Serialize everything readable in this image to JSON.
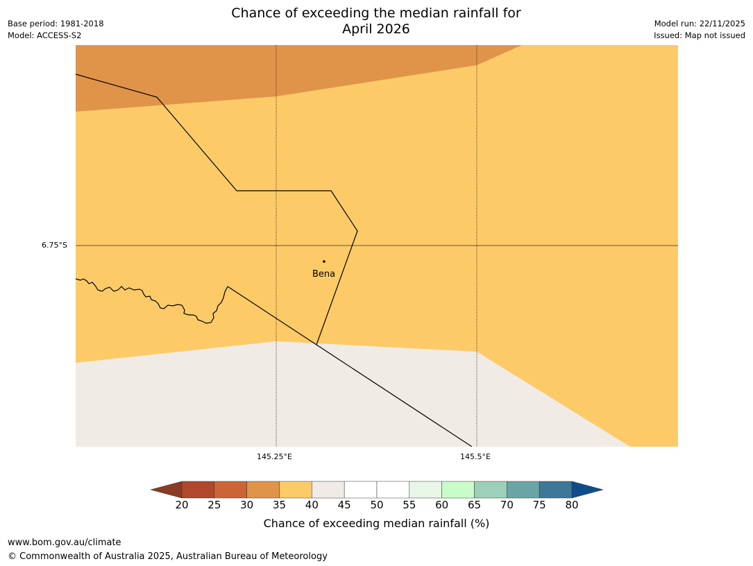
{
  "title": {
    "line1": "Chance of exceeding the median rainfall for",
    "line2": "April 2026"
  },
  "meta_left": {
    "base_period": "Base period: 1981-2018",
    "model": "Model: ACCESS-S2"
  },
  "meta_right": {
    "model_run": "Model run: 22/11/2025",
    "issued": "Issued: Map not issued"
  },
  "map": {
    "lat_label": "6.75°S",
    "lon_labels": [
      "145.25°E",
      "145.5°E"
    ],
    "town": "Bena",
    "colors": {
      "c30_35": "#e0944a",
      "c35_40": "#fdca68",
      "c40_45": "#f0ebe5"
    }
  },
  "colorbar": {
    "label": "Chance of exceeding median rainfall (%)",
    "ticks": [
      "20",
      "25",
      "30",
      "35",
      "40",
      "45",
      "50",
      "55",
      "60",
      "65",
      "70",
      "75",
      "80"
    ],
    "under_color": "#8c3a24",
    "over_color": "#0f4d8a",
    "colors": [
      "#b0482a",
      "#cc6535",
      "#e0944a",
      "#fdca68",
      "#f0ebe5",
      "#ffffff",
      "#ffffff",
      "#e8f6e8",
      "#c8fcc8",
      "#9cd0b8",
      "#6aa4a4",
      "#3e7898"
    ]
  },
  "footer": {
    "url": "www.bom.gov.au/climate",
    "copyright": "© Commonwealth of Australia 2025, Australian Bureau of Meteorology"
  }
}
